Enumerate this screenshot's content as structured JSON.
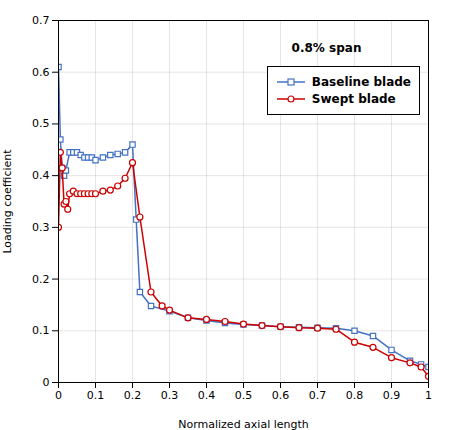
{
  "chart_data": {
    "type": "line",
    "xlabel": "Normalized axial length",
    "ylabel": "Loading coefficient",
    "series": [
      {
        "name": "Baseline blade",
        "color": "#4472C4",
        "marker": "square",
        "x": [
          0.0,
          0.005,
          0.01,
          0.015,
          0.02,
          0.03,
          0.04,
          0.05,
          0.06,
          0.07,
          0.08,
          0.09,
          0.1,
          0.12,
          0.14,
          0.16,
          0.18,
          0.2,
          0.21,
          0.22,
          0.25,
          0.3,
          0.35,
          0.4,
          0.45,
          0.5,
          0.55,
          0.6,
          0.65,
          0.7,
          0.75,
          0.8,
          0.85,
          0.9,
          0.95,
          0.98,
          1.0
        ],
        "values": [
          0.61,
          0.47,
          0.415,
          0.4,
          0.41,
          0.445,
          0.445,
          0.445,
          0.44,
          0.435,
          0.435,
          0.435,
          0.43,
          0.435,
          0.44,
          0.442,
          0.445,
          0.46,
          0.315,
          0.175,
          0.148,
          0.138,
          0.125,
          0.12,
          0.115,
          0.112,
          0.11,
          0.108,
          0.107,
          0.106,
          0.105,
          0.1,
          0.09,
          0.063,
          0.042,
          0.035,
          0.03
        ]
      },
      {
        "name": "Swept blade",
        "color": "#CC0000",
        "marker": "circle",
        "x": [
          0.0,
          0.005,
          0.01,
          0.015,
          0.02,
          0.025,
          0.03,
          0.04,
          0.05,
          0.06,
          0.07,
          0.08,
          0.09,
          0.1,
          0.12,
          0.14,
          0.16,
          0.18,
          0.2,
          0.22,
          0.25,
          0.28,
          0.3,
          0.35,
          0.4,
          0.45,
          0.5,
          0.55,
          0.6,
          0.65,
          0.7,
          0.75,
          0.8,
          0.85,
          0.9,
          0.95,
          0.98,
          1.0
        ],
        "values": [
          0.3,
          0.445,
          0.415,
          0.345,
          0.35,
          0.335,
          0.365,
          0.37,
          0.365,
          0.365,
          0.365,
          0.365,
          0.365,
          0.365,
          0.37,
          0.372,
          0.38,
          0.395,
          0.425,
          0.32,
          0.175,
          0.148,
          0.14,
          0.125,
          0.122,
          0.118,
          0.113,
          0.11,
          0.108,
          0.106,
          0.105,
          0.103,
          0.078,
          0.068,
          0.048,
          0.038,
          0.03,
          0.012
        ]
      }
    ],
    "xlim": [
      0,
      1.0
    ],
    "ylim": [
      0,
      0.7
    ],
    "xticks": [
      0,
      0.1,
      0.2,
      0.3,
      0.4,
      0.5,
      0.6,
      0.7,
      0.8,
      0.9,
      1.0
    ],
    "yticks": [
      0,
      0.1,
      0.2,
      0.3,
      0.4,
      0.5,
      0.6,
      0.7
    ],
    "grid": true,
    "legend": "upper right",
    "annotations": [
      {
        "text": "0.8% span",
        "x": 0.63,
        "y": 0.655
      }
    ]
  }
}
